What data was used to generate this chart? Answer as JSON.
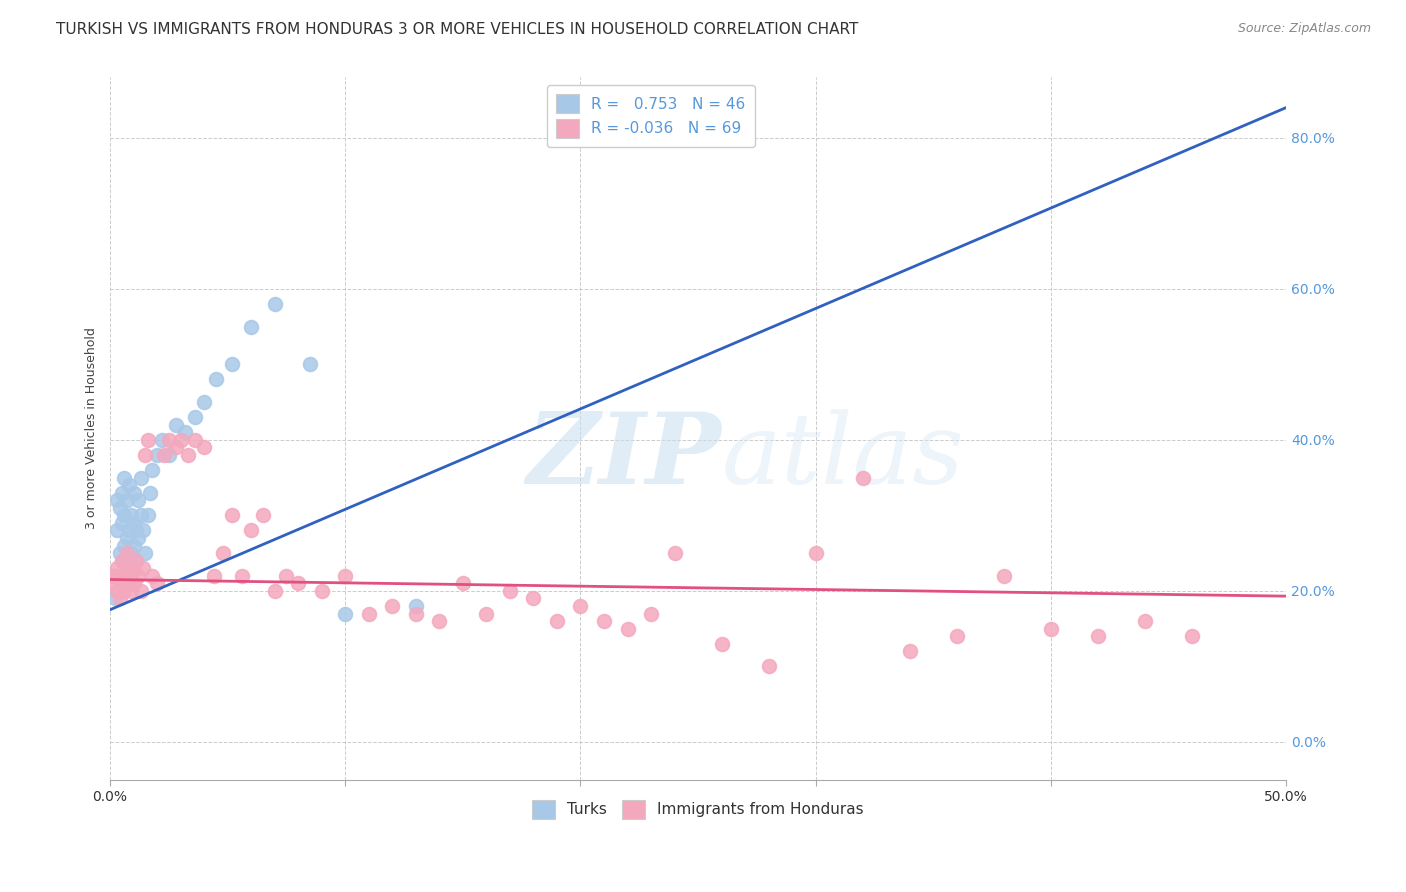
{
  "title": "TURKISH VS IMMIGRANTS FROM HONDURAS 3 OR MORE VEHICLES IN HOUSEHOLD CORRELATION CHART",
  "source": "Source: ZipAtlas.com",
  "ylabel": "3 or more Vehicles in Household",
  "xlim": [
    0.0,
    0.5
  ],
  "ylim": [
    -0.05,
    0.88
  ],
  "x_ticks": [
    0.0,
    0.1,
    0.2,
    0.3,
    0.4,
    0.5
  ],
  "x_tick_labels": [
    "0.0%",
    "",
    "",
    "",
    "",
    "50.0%"
  ],
  "y_ticks": [
    0.0,
    0.2,
    0.4,
    0.6,
    0.8
  ],
  "y_tick_labels": [
    "0.0%",
    "20.0%",
    "40.0%",
    "60.0%",
    "80.0%"
  ],
  "legend_labels": [
    "Turks",
    "Immigrants from Honduras"
  ],
  "turks_color": "#a8c8e8",
  "honduras_color": "#f4a8be",
  "turks_line_color": "#3060c0",
  "honduras_line_color": "#e05080",
  "turks_R": 0.753,
  "turks_N": 46,
  "honduras_R": -0.036,
  "honduras_N": 69,
  "turks_line_x0": 0.0,
  "turks_line_y0": 0.175,
  "turks_line_x1": 0.5,
  "turks_line_y1": 0.84,
  "honduras_line_x0": 0.0,
  "honduras_line_y0": 0.215,
  "honduras_line_x1": 0.5,
  "honduras_line_y1": 0.193,
  "turks_scatter_x": [
    0.001,
    0.002,
    0.003,
    0.003,
    0.004,
    0.004,
    0.005,
    0.005,
    0.005,
    0.006,
    0.006,
    0.006,
    0.007,
    0.007,
    0.008,
    0.008,
    0.009,
    0.009,
    0.01,
    0.01,
    0.01,
    0.011,
    0.011,
    0.012,
    0.012,
    0.013,
    0.013,
    0.014,
    0.015,
    0.016,
    0.017,
    0.018,
    0.02,
    0.022,
    0.025,
    0.028,
    0.032,
    0.036,
    0.04,
    0.045,
    0.052,
    0.06,
    0.07,
    0.085,
    0.1,
    0.13
  ],
  "turks_scatter_y": [
    0.22,
    0.19,
    0.28,
    0.32,
    0.25,
    0.31,
    0.24,
    0.29,
    0.33,
    0.26,
    0.3,
    0.35,
    0.27,
    0.32,
    0.28,
    0.34,
    0.25,
    0.3,
    0.26,
    0.29,
    0.33,
    0.24,
    0.28,
    0.27,
    0.32,
    0.3,
    0.35,
    0.28,
    0.25,
    0.3,
    0.33,
    0.36,
    0.38,
    0.4,
    0.38,
    0.42,
    0.41,
    0.43,
    0.45,
    0.48,
    0.5,
    0.55,
    0.58,
    0.5,
    0.17,
    0.18
  ],
  "honduras_scatter_x": [
    0.001,
    0.002,
    0.003,
    0.003,
    0.004,
    0.004,
    0.005,
    0.005,
    0.006,
    0.006,
    0.007,
    0.007,
    0.008,
    0.008,
    0.009,
    0.009,
    0.01,
    0.01,
    0.011,
    0.012,
    0.013,
    0.014,
    0.015,
    0.016,
    0.018,
    0.02,
    0.023,
    0.025,
    0.028,
    0.03,
    0.033,
    0.036,
    0.04,
    0.044,
    0.048,
    0.052,
    0.056,
    0.06,
    0.065,
    0.07,
    0.075,
    0.08,
    0.09,
    0.1,
    0.11,
    0.12,
    0.13,
    0.14,
    0.15,
    0.16,
    0.17,
    0.18,
    0.19,
    0.2,
    0.21,
    0.22,
    0.23,
    0.24,
    0.26,
    0.28,
    0.3,
    0.32,
    0.34,
    0.36,
    0.38,
    0.4,
    0.42,
    0.44,
    0.46
  ],
  "honduras_scatter_y": [
    0.21,
    0.22,
    0.2,
    0.23,
    0.19,
    0.22,
    0.21,
    0.24,
    0.22,
    0.2,
    0.23,
    0.25,
    0.22,
    0.21,
    0.22,
    0.2,
    0.23,
    0.21,
    0.24,
    0.22,
    0.2,
    0.23,
    0.38,
    0.4,
    0.22,
    0.21,
    0.38,
    0.4,
    0.39,
    0.4,
    0.38,
    0.4,
    0.39,
    0.22,
    0.25,
    0.3,
    0.22,
    0.28,
    0.3,
    0.2,
    0.22,
    0.21,
    0.2,
    0.22,
    0.17,
    0.18,
    0.17,
    0.16,
    0.21,
    0.17,
    0.2,
    0.19,
    0.16,
    0.18,
    0.16,
    0.15,
    0.17,
    0.25,
    0.13,
    0.1,
    0.25,
    0.35,
    0.12,
    0.14,
    0.22,
    0.15,
    0.14,
    0.16,
    0.14
  ],
  "watermark_zip": "ZIP",
  "watermark_atlas": "atlas",
  "background_color": "#ffffff",
  "grid_color": "#cccccc",
  "title_fontsize": 11,
  "axis_label_fontsize": 9,
  "tick_fontsize": 10,
  "tick_color": "#5599dd"
}
